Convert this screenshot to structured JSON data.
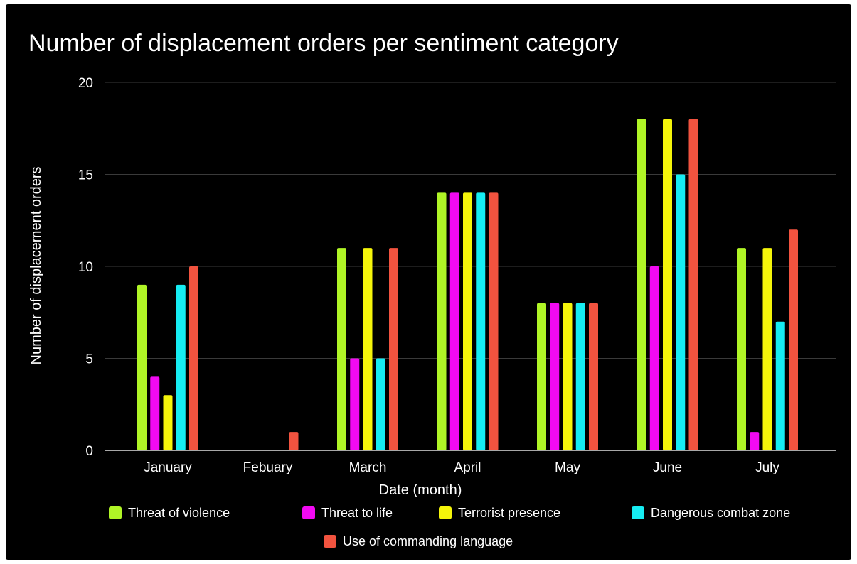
{
  "chart_data": {
    "type": "bar",
    "title": "Number of displacement orders per sentiment category",
    "xlabel": "Date (month)",
    "ylabel": "Number of displacement orders",
    "ylim": [
      0,
      20
    ],
    "yticks": [
      0,
      5,
      10,
      15,
      20
    ],
    "grid": true,
    "legend_position": "bottom",
    "background": "#000000",
    "categories": [
      "January",
      "Febuary",
      "March",
      "April",
      "May",
      "June",
      "July"
    ],
    "series": [
      {
        "name": "Threat of violence",
        "color": "#b0f526",
        "values": [
          9,
          0,
          11,
          14,
          8,
          18,
          11
        ]
      },
      {
        "name": "Threat to life",
        "color": "#f20af2",
        "values": [
          4,
          0,
          5,
          14,
          8,
          10,
          1
        ]
      },
      {
        "name": "Terrorist presence",
        "color": "#f5f50a",
        "values": [
          3,
          0,
          11,
          14,
          8,
          18,
          11
        ]
      },
      {
        "name": "Dangerous combat zone",
        "color": "#16ecf2",
        "values": [
          9,
          0,
          5,
          14,
          8,
          15,
          7
        ]
      },
      {
        "name": "Use of commanding language",
        "color": "#f2533f",
        "values": [
          10,
          1,
          11,
          14,
          8,
          18,
          12
        ]
      }
    ]
  }
}
